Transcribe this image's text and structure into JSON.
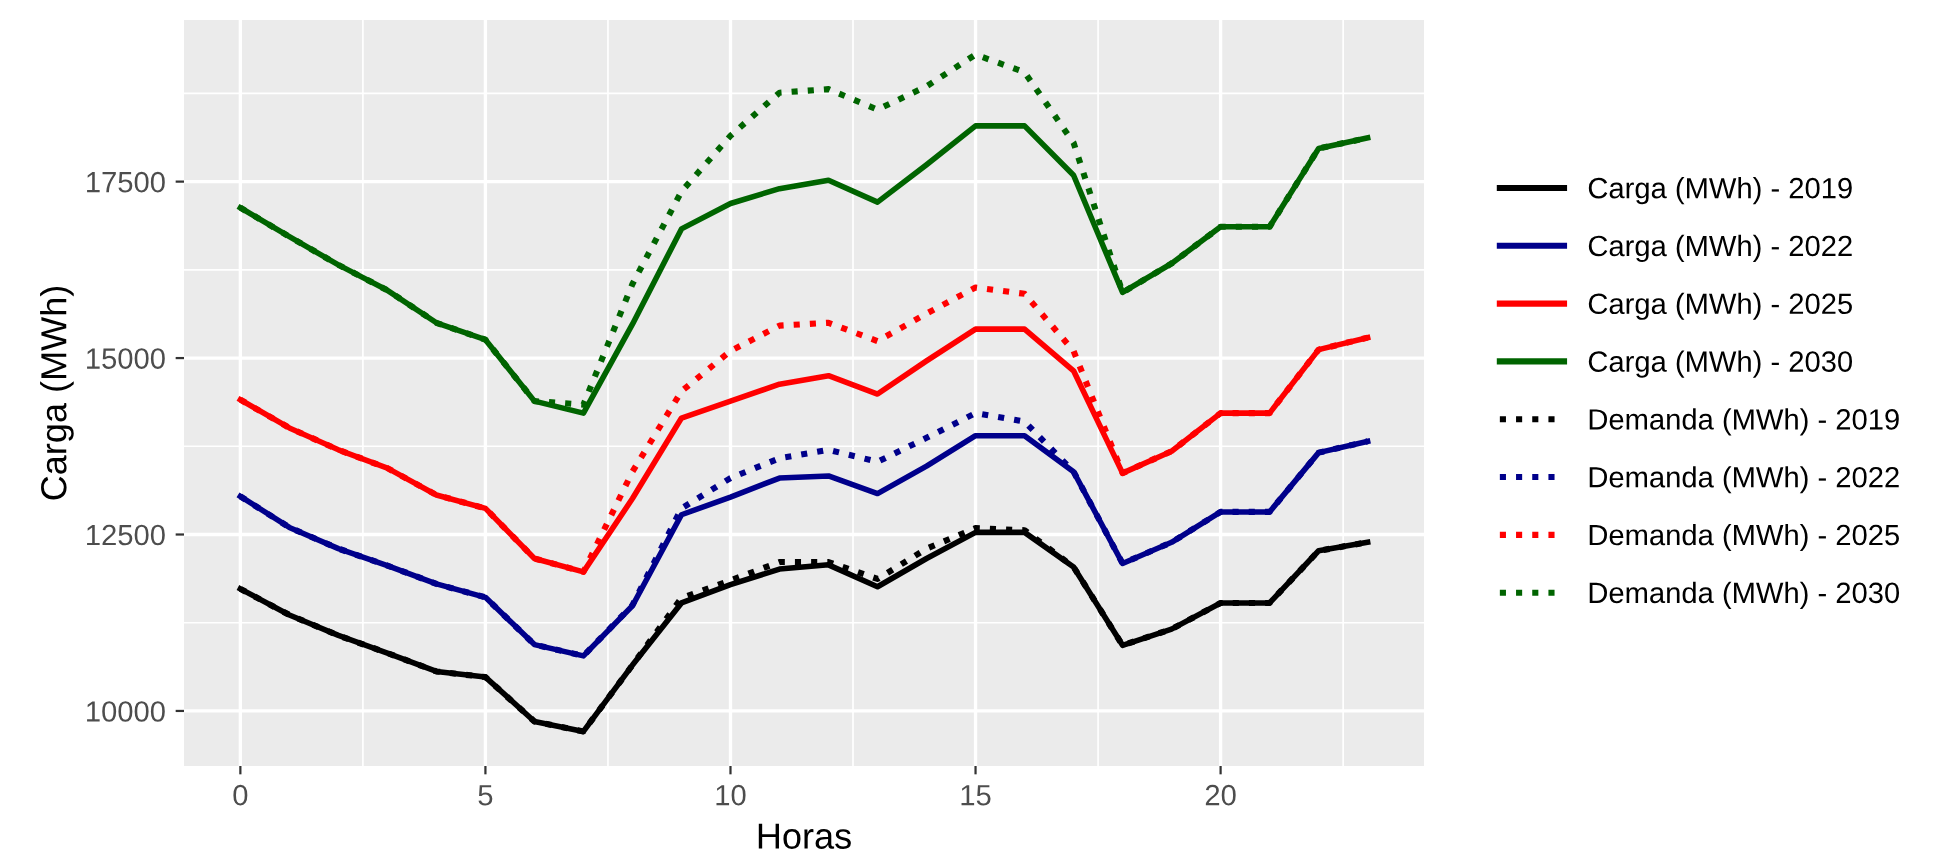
{
  "chart_data": {
    "type": "line",
    "xlabel": "Horas",
    "ylabel": "Carga (MWh)",
    "x": [
      0,
      1,
      2,
      3,
      4,
      5,
      6,
      7,
      8,
      9,
      10,
      11,
      12,
      13,
      14,
      15,
      16,
      17,
      18,
      19,
      20,
      21,
      22,
      23
    ],
    "xlim": [
      -1.15,
      24.15
    ],
    "xticks": [
      0,
      5,
      10,
      15,
      20
    ],
    "ylim": [
      9220,
      19790
    ],
    "yticks": [
      10000,
      12500,
      15000,
      17500
    ],
    "grid": true,
    "legend": "right",
    "marker": "none",
    "series": [
      {
        "name": "Carga (MWh) - 2019",
        "color": "#000000",
        "line_style": "solid",
        "values": [
          11730,
          11360,
          11070,
          10820,
          10560,
          10480,
          9850,
          9710,
          10650,
          11530,
          11790,
          12010,
          12070,
          11760,
          12160,
          12530,
          12530,
          12040,
          10930,
          11160,
          11530,
          11530,
          12270,
          12390
        ]
      },
      {
        "name": "Carga (MWh) - 2022",
        "color": "#00008b",
        "line_style": "solid",
        "values": [
          13040,
          12600,
          12300,
          12060,
          11800,
          11610,
          10940,
          10780,
          11490,
          12780,
          13030,
          13300,
          13330,
          13080,
          13470,
          13900,
          13900,
          13390,
          12090,
          12390,
          12820,
          12820,
          13660,
          13820
        ]
      },
      {
        "name": "Carga (MWh) - 2025",
        "color": "#ff0000",
        "line_style": "solid",
        "values": [
          14410,
          14010,
          13700,
          13440,
          13060,
          12870,
          12160,
          11970,
          13010,
          14150,
          14390,
          14630,
          14750,
          14490,
          14960,
          15410,
          15410,
          14820,
          13370,
          13680,
          14220,
          14220,
          15120,
          15290
        ]
      },
      {
        "name": "Carga (MWh) - 2030",
        "color": "#006400",
        "line_style": "solid",
        "values": [
          17130,
          16720,
          16320,
          15960,
          15500,
          15260,
          14390,
          14220,
          15480,
          16830,
          17190,
          17400,
          17520,
          17210,
          17740,
          18290,
          18290,
          17590,
          15930,
          16340,
          16860,
          16860,
          17970,
          18120
        ]
      },
      {
        "name": "Demanda (MWh) - 2019",
        "color": "#000000",
        "line_style": "dotted",
        "values": [
          11730,
          11360,
          11070,
          10820,
          10560,
          10480,
          9850,
          9710,
          10650,
          11600,
          11850,
          12110,
          12110,
          11870,
          12300,
          12590,
          12560,
          12040,
          10930,
          11160,
          11530,
          11530,
          12270,
          12390
        ]
      },
      {
        "name": "Demanda (MWh) - 2022",
        "color": "#00008b",
        "line_style": "dotted",
        "values": [
          13040,
          12600,
          12300,
          12060,
          11800,
          11610,
          10940,
          10780,
          11500,
          12870,
          13300,
          13580,
          13700,
          13530,
          13870,
          14220,
          14100,
          13390,
          12090,
          12390,
          12820,
          12820,
          13660,
          13820
        ]
      },
      {
        "name": "Demanda (MWh) - 2025",
        "color": "#ff0000",
        "line_style": "dotted",
        "values": [
          14410,
          14010,
          13700,
          13440,
          13060,
          12870,
          12160,
          11970,
          13390,
          14530,
          15100,
          15460,
          15500,
          15240,
          15630,
          16000,
          15910,
          15100,
          13370,
          13680,
          14220,
          14220,
          15120,
          15290
        ]
      },
      {
        "name": "Demanda (MWh) - 2030",
        "color": "#006400",
        "line_style": "dotted",
        "values": [
          17130,
          16720,
          16320,
          15960,
          15500,
          15260,
          14390,
          14340,
          16050,
          17360,
          18150,
          18760,
          18810,
          18520,
          18850,
          19300,
          19050,
          18050,
          15930,
          16340,
          16860,
          16860,
          17970,
          18120
        ]
      }
    ]
  }
}
